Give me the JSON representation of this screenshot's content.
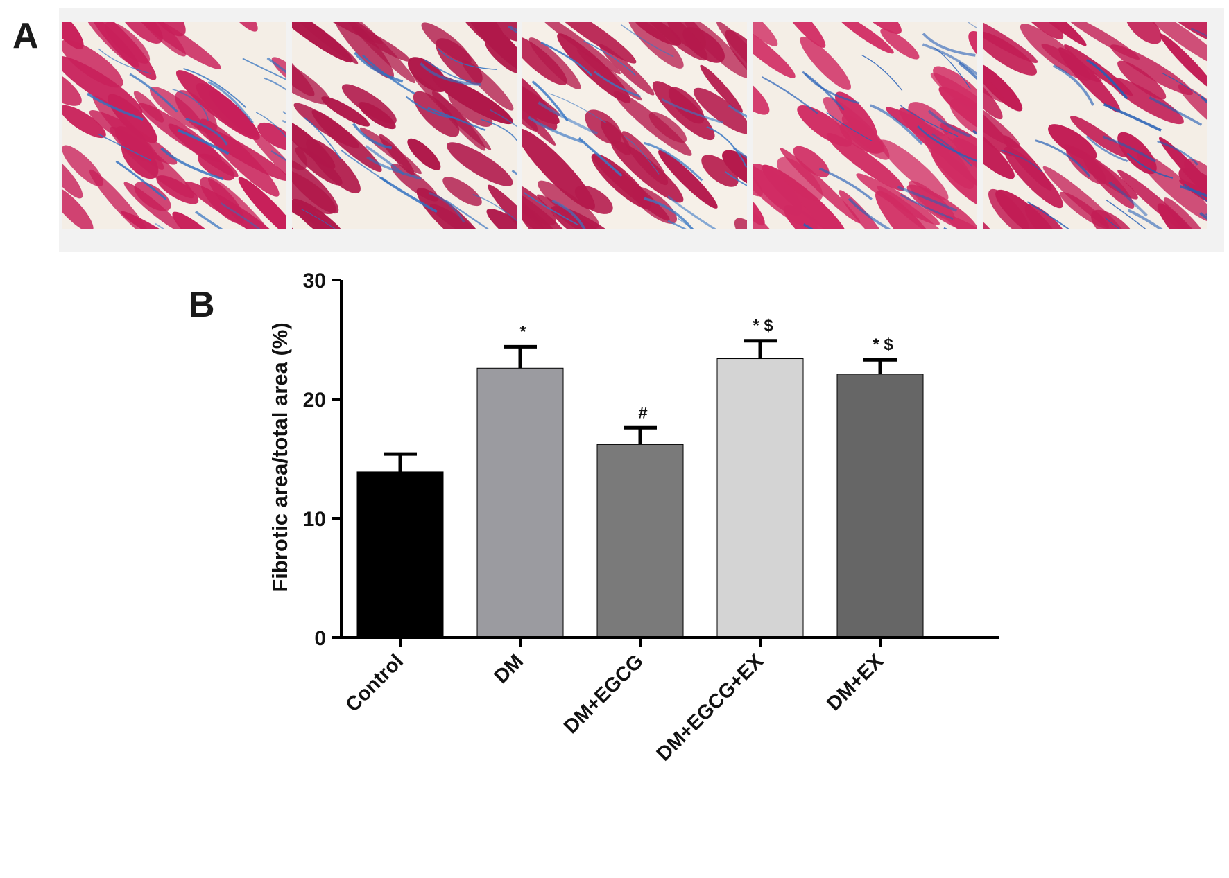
{
  "panels": {
    "a_label": "A",
    "b_label": "B",
    "micrographs": [
      {
        "stain_colors": {
          "muscle": "#c8205a",
          "collagen": "#2f6fbf",
          "background": "#f4eee6"
        }
      },
      {
        "stain_colors": {
          "muscle": "#b0184a",
          "collagen": "#2f6fbf",
          "background": "#f4eee6"
        }
      },
      {
        "stain_colors": {
          "muscle": "#b51a4c",
          "collagen": "#3a78c4",
          "background": "#f6f0e8"
        }
      },
      {
        "stain_colors": {
          "muscle": "#d02a62",
          "collagen": "#2a62b8",
          "background": "#f4eee6"
        }
      },
      {
        "stain_colors": {
          "muscle": "#c21d55",
          "collagen": "#245eb5",
          "background": "#f4eee6"
        }
      }
    ]
  },
  "chart_data": {
    "type": "bar",
    "title": "",
    "xlabel": "",
    "ylabel": "Fibrotic area/total area (%)",
    "ylim": [
      0,
      30
    ],
    "yticks": [
      0,
      10,
      20,
      30
    ],
    "grid": false,
    "categories": [
      "Control",
      "DM",
      "DM+EGCG",
      "DM+EGCG+EX",
      "DM+EX"
    ],
    "values": [
      13.9,
      22.6,
      16.2,
      23.4,
      22.1
    ],
    "errors": [
      1.5,
      1.8,
      1.4,
      1.5,
      1.2
    ],
    "bar_colors": [
      "#000000",
      "#9b9ba0",
      "#7a7a7a",
      "#d4d4d4",
      "#666666"
    ],
    "annotations": [
      "",
      "*",
      "#",
      "* $",
      "* $"
    ]
  }
}
